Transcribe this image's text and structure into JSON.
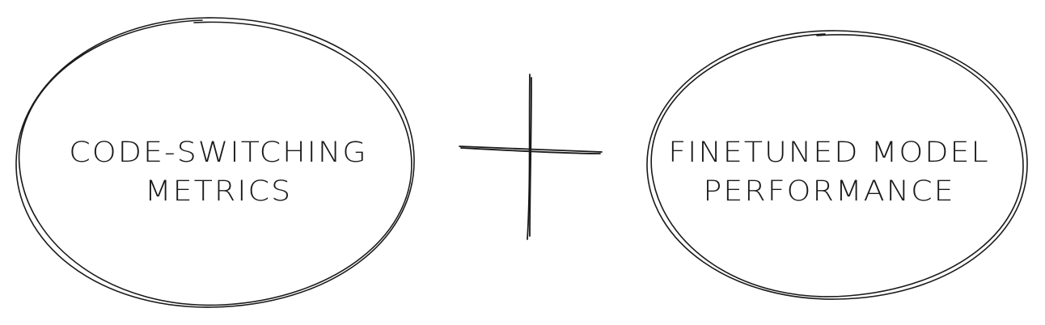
{
  "left_node": {
    "line1": "CODE-SWITCHING",
    "line2": "METRICS"
  },
  "operator": {
    "symbol_name": "plus-icon"
  },
  "right_node": {
    "line1": "FINETUNED MODEL",
    "line2": "PERFORMANCE"
  },
  "colors": {
    "stroke": "#1a1a1a",
    "background": "#ffffff"
  }
}
